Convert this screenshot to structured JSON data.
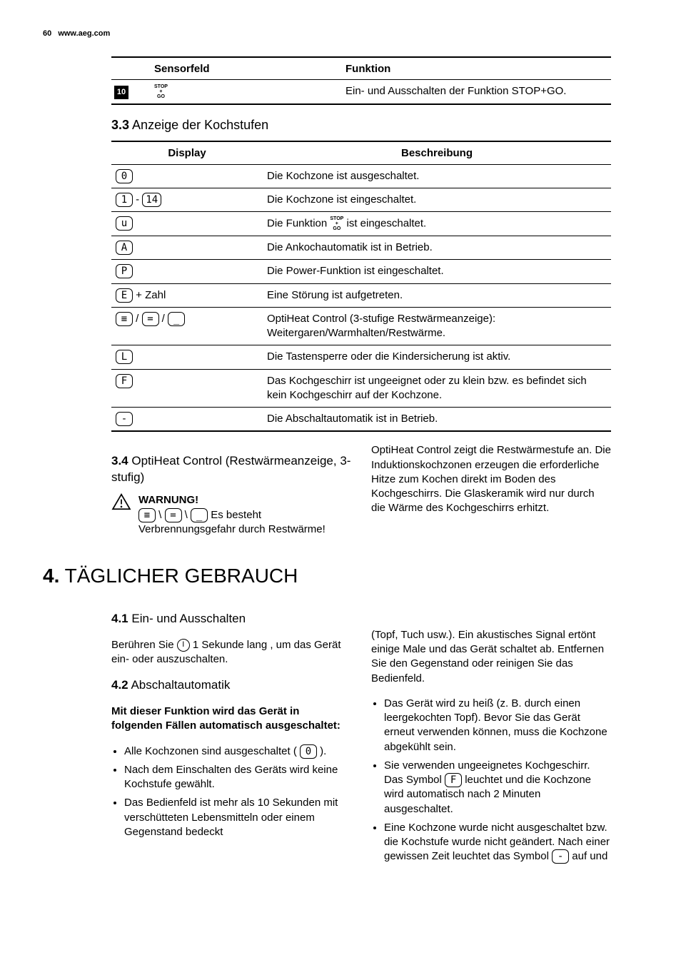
{
  "header": {
    "page_num": "60",
    "url": "www.aeg.com"
  },
  "table_top": {
    "headers": [
      "Sensorfeld",
      "Funktion"
    ],
    "row": {
      "num": "10",
      "icon": "STOP\n+\nGO",
      "desc": "Ein- und Ausschalten der Funktion STOP+GO."
    }
  },
  "sec33": {
    "num": "3.3",
    "title": "Anzeige der Kochstufen",
    "headers": [
      "Display",
      "Beschreibung"
    ],
    "rows": [
      {
        "disp": [
          "0"
        ],
        "sep": "",
        "suffix": "",
        "desc": "Die Kochzone ist ausgeschaltet."
      },
      {
        "disp": [
          "1",
          "14"
        ],
        "sep": " - ",
        "suffix": "",
        "desc": "Die Kochzone ist eingeschaltet."
      },
      {
        "disp": [
          "u"
        ],
        "sep": "",
        "suffix": "",
        "desc_pre": "Die Funktion ",
        "desc_post": " ist eingeschaltet.",
        "inline_icon": "STOP\n+\nGO"
      },
      {
        "disp": [
          "A"
        ],
        "sep": "",
        "suffix": "",
        "desc": "Die Ankochautomatik ist in Betrieb."
      },
      {
        "disp": [
          "P"
        ],
        "sep": "",
        "suffix": "",
        "desc": "Die Power-Funktion ist eingeschaltet."
      },
      {
        "disp": [
          "E"
        ],
        "sep": "",
        "suffix": " + Zahl",
        "desc": "Eine Störung ist aufgetreten."
      },
      {
        "disp": [
          "≡",
          "=",
          "_"
        ],
        "sep": " / ",
        "suffix": "",
        "desc": "OptiHeat Control (3-stufige Restwärmeanzeige): Weitergaren/Warmhalten/Restwärme."
      },
      {
        "disp": [
          "L"
        ],
        "sep": "",
        "suffix": "",
        "desc": "Die Tastensperre oder die Kindersicherung ist aktiv."
      },
      {
        "disp": [
          "F"
        ],
        "sep": "",
        "suffix": "",
        "desc": "Das Kochgeschirr ist ungeeignet oder zu klein bzw. es befindet sich kein Kochgeschirr auf der Kochzone."
      },
      {
        "disp": [
          "-"
        ],
        "sep": "",
        "suffix": "",
        "desc": "Die Abschaltautomatik ist in Betrieb."
      }
    ]
  },
  "sec34": {
    "num": "3.4",
    "title": "OptiHeat Control (Restwärmeanzeige, 3-stufig)",
    "warn_title": "WARNUNG!",
    "warn_icons": [
      "≡",
      "=",
      "_"
    ],
    "warn_sep": " \\ ",
    "warn_text": " Es besteht Verbrennungsgefahr durch Restwärme!",
    "right": "OptiHeat Control zeigt die Restwärmestufe an. Die Induktionskochzonen erzeugen die erforderliche Hitze zum Kochen direkt im Boden des Kochgeschirrs. Die Glaskeramik wird nur durch die Wärme des Kochgeschirrs erhitzt."
  },
  "ch4": {
    "num": "4.",
    "title": "TÄGLICHER GEBRAUCH",
    "sec41": {
      "num": "4.1",
      "title": "Ein- und Ausschalten",
      "text_pre": "Berühren Sie ",
      "text_post": " 1 Sekunde lang , um das Gerät ein- oder auszuschalten."
    },
    "sec42": {
      "num": "4.2",
      "title": "Abschaltautomatik",
      "intro": "Mit dieser Funktion wird das Gerät in folgenden Fällen automatisch ausgeschaltet:",
      "left_items": [
        {
          "pre": "Alle Kochzonen sind ausgeschaltet ( ",
          "icon": "0",
          "post": " )."
        },
        {
          "text": "Nach dem Einschalten des Geräts wird keine Kochstufe gewählt."
        },
        {
          "text": "Das Bedienfeld ist mehr als 10 Sekunden mit verschütteten Lebensmitteln oder einem Gegenstand bedeckt"
        }
      ],
      "right_top": "(Topf, Tuch usw.). Ein akustisches Signal ertönt einige Male und das Gerät schaltet ab. Entfernen Sie den Gegenstand oder reinigen Sie das Bedienfeld.",
      "right_items": [
        {
          "text": "Das Gerät wird zu heiß (z. B. durch einen leergekochten Topf). Bevor Sie das Gerät erneut verwenden können, muss die Kochzone abgekühlt sein."
        },
        {
          "pre": "Sie verwenden ungeeignetes Kochgeschirr. Das Symbol ",
          "icon": "F",
          "post": " leuchtet und die Kochzone wird automatisch nach 2 Minuten ausgeschaltet."
        },
        {
          "pre": "Eine Kochzone wurde nicht ausgeschaltet bzw. die Kochstufe wurde nicht geändert. Nach einer gewissen Zeit leuchtet das Symbol ",
          "icon": "-",
          "post": " auf und"
        }
      ]
    }
  }
}
